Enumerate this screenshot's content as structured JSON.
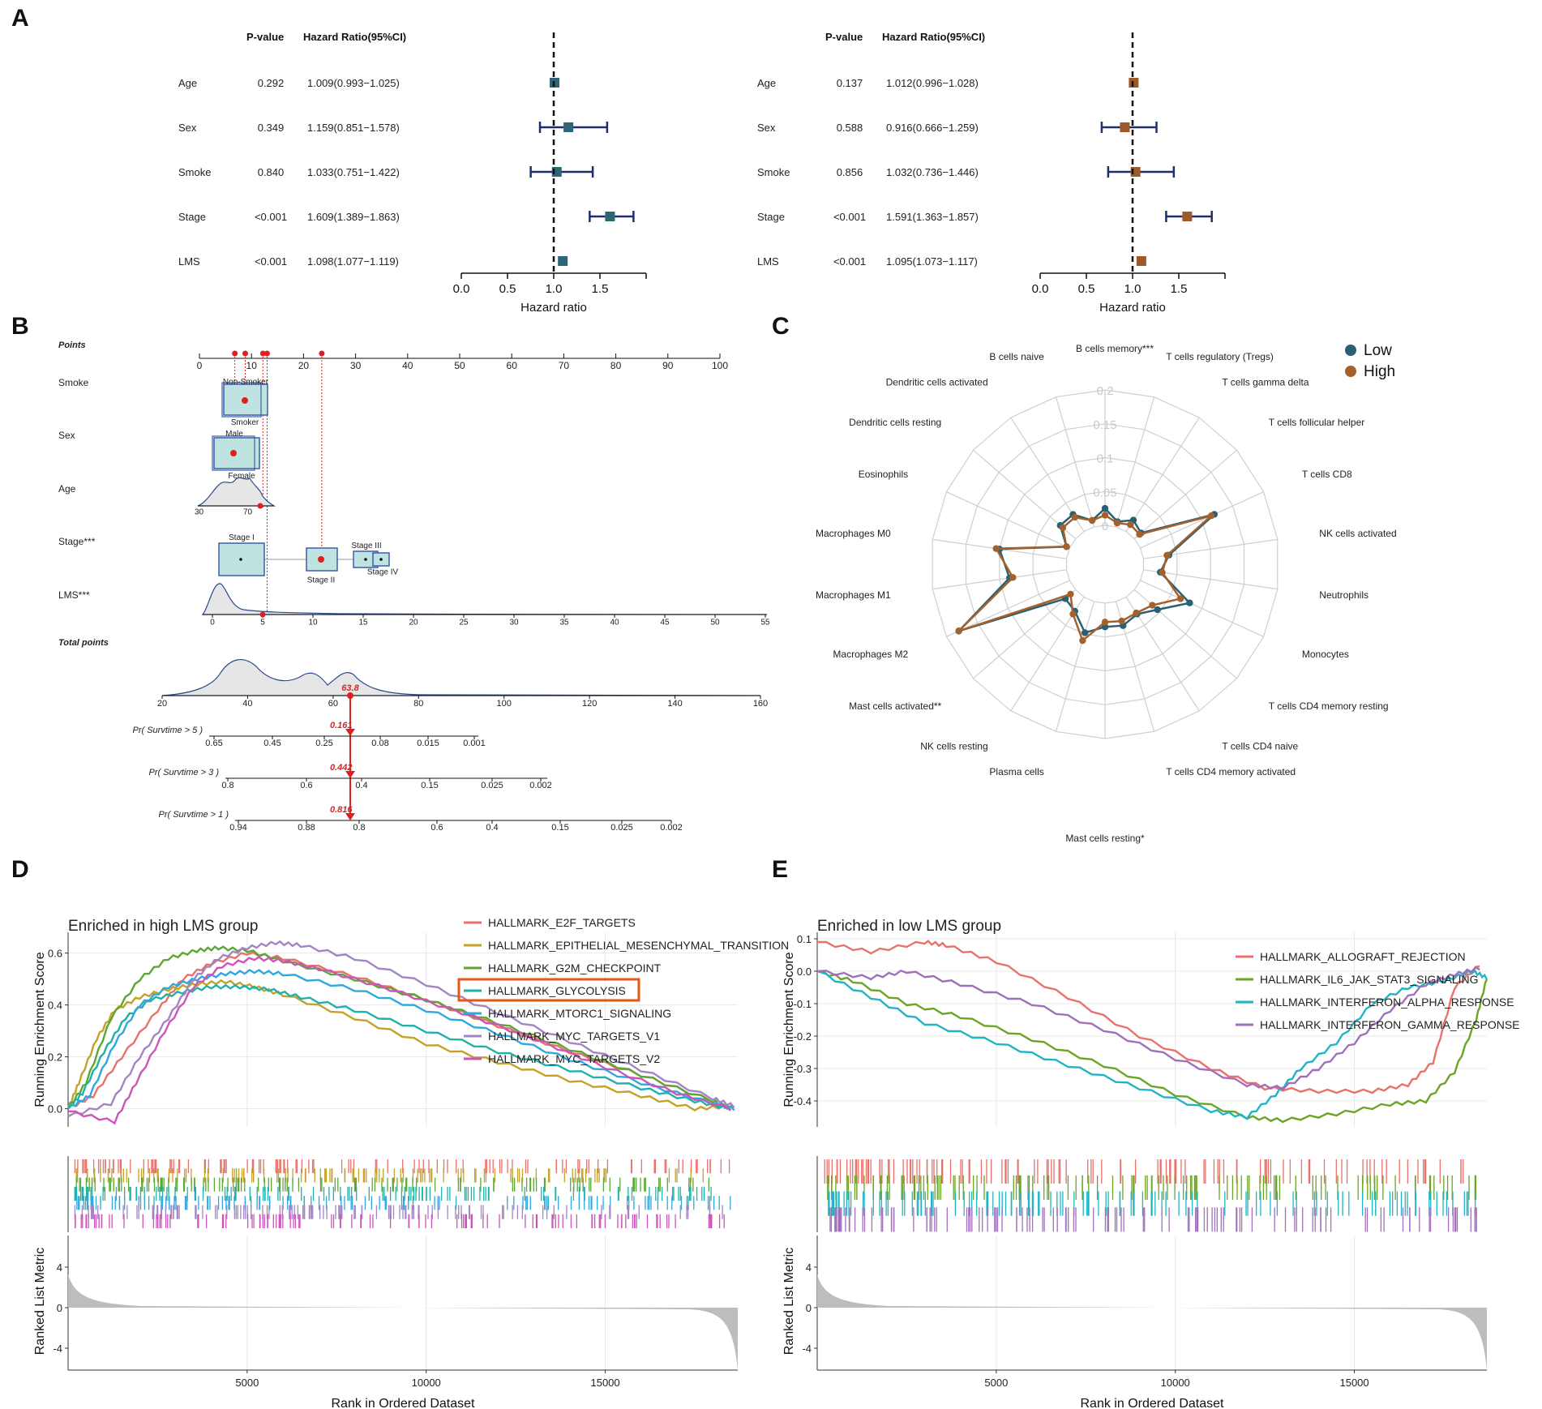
{
  "panel_labels": {
    "a": "A",
    "b": "B",
    "c": "C",
    "d": "D",
    "e": "E"
  },
  "chart_data": [
    {
      "id": "forest_left",
      "type": "forest",
      "headers": {
        "p": "P-value",
        "hr": "Hazard Ratio(95%CI)"
      },
      "rows": [
        {
          "name": "Age",
          "p": "0.292",
          "hr_text": "1.009(0.993−1.025)",
          "hr": 1.009,
          "lo": 0.993,
          "hi": 1.025
        },
        {
          "name": "Sex",
          "p": "0.349",
          "hr_text": "1.159(0.851−1.578)",
          "hr": 1.159,
          "lo": 0.851,
          "hi": 1.578
        },
        {
          "name": "Smoke",
          "p": "0.840",
          "hr_text": "1.033(0.751−1.422)",
          "hr": 1.033,
          "lo": 0.751,
          "hi": 1.422
        },
        {
          "name": "Stage",
          "p": "<0.001",
          "hr_text": "1.609(1.389−1.863)",
          "hr": 1.609,
          "lo": 1.389,
          "hi": 1.863
        },
        {
          "name": "LMS",
          "p": "<0.001",
          "hr_text": "1.098(1.077−1.119)",
          "hr": 1.098,
          "lo": 1.077,
          "hi": 1.119
        }
      ],
      "xticks": [
        "0.0",
        "0.5",
        "1.0",
        "1.5"
      ],
      "xlim": [
        0,
        2
      ],
      "xlabel": "Hazard ratio",
      "color": "#2e6577"
    },
    {
      "id": "forest_right",
      "type": "forest",
      "headers": {
        "p": "P-value",
        "hr": "Hazard Ratio(95%CI)"
      },
      "rows": [
        {
          "name": "Age",
          "p": "0.137",
          "hr_text": "1.012(0.996−1.028)",
          "hr": 1.012,
          "lo": 0.996,
          "hi": 1.028
        },
        {
          "name": "Sex",
          "p": "0.588",
          "hr_text": "0.916(0.666−1.259)",
          "hr": 0.916,
          "lo": 0.666,
          "hi": 1.259
        },
        {
          "name": "Smoke",
          "p": "0.856",
          "hr_text": "1.032(0.736−1.446)",
          "hr": 1.032,
          "lo": 0.736,
          "hi": 1.446
        },
        {
          "name": "Stage",
          "p": "<0.001",
          "hr_text": "1.591(1.363−1.857)",
          "hr": 1.591,
          "lo": 1.363,
          "hi": 1.857
        },
        {
          "name": "LMS",
          "p": "<0.001",
          "hr_text": "1.095(1.073−1.117)",
          "hr": 1.095,
          "lo": 1.073,
          "hi": 1.117
        }
      ],
      "xticks": [
        "0.0",
        "0.5",
        "1.0",
        "1.5"
      ],
      "xlim": [
        0,
        2
      ],
      "xlabel": "Hazard ratio",
      "color": "#9c5a2a"
    },
    {
      "id": "nomogram",
      "type": "nomogram",
      "points_label": "Points",
      "points_ticks": [
        "0",
        "10",
        "20",
        "30",
        "40",
        "50",
        "60",
        "70",
        "80",
        "90",
        "100"
      ],
      "smoke": {
        "label": "Smoke",
        "cats": [
          "Non-Smoker",
          "Smoker"
        ]
      },
      "sex": {
        "label": "Sex",
        "cats": [
          "Male",
          "Female"
        ]
      },
      "age": {
        "label": "Age",
        "ticks": [
          "30",
          "70"
        ]
      },
      "stage": {
        "label": "Stage***",
        "cats": [
          "Stage I",
          "Stage II",
          "Stage III",
          "Stage IV"
        ]
      },
      "lms": {
        "label": "LMS***",
        "ticks": [
          "0",
          "5",
          "10",
          "15",
          "20",
          "25",
          "30",
          "35",
          "40",
          "45",
          "50",
          "55"
        ]
      },
      "total_label": "Total points",
      "total_ticks": [
        "20",
        "40",
        "60",
        "80",
        "100",
        "120",
        "140",
        "160"
      ],
      "total_value": "63.8",
      "surv5": {
        "label": "Pr( Survtime > 5 )",
        "ticks": [
          "0.65",
          "0.45",
          "0.25",
          "0.08",
          "0.015",
          "0.001"
        ],
        "value": "0.161"
      },
      "surv3": {
        "label": "Pr( Survtime > 3 )",
        "ticks": [
          "0.8",
          "0.6",
          "0.4",
          "0.15",
          "0.025",
          "0.002"
        ],
        "value": "0.442"
      },
      "surv1": {
        "label": "Pr( Survtime > 1 )",
        "ticks": [
          "0.94",
          "0.88",
          "0.8",
          "0.6",
          "0.4",
          "0.15",
          "0.025",
          "0.002"
        ],
        "value": "0.816"
      }
    },
    {
      "id": "radar",
      "type": "radar",
      "categories": [
        "B cells memory***",
        "T cells regulatory (Tregs)",
        "T cells gamma delta",
        "T cells follicular helper",
        "T cells CD8",
        "NK cells activated",
        "Neutrophils",
        "Monocytes",
        "T cells CD4 memory resting",
        "T cells CD4 naive",
        "T cells CD4 memory activated",
        "Mast cells resting*",
        "Plasma cells",
        "NK cells resting",
        "Mast cells activated**",
        "Macrophages M2",
        "Macrophages M1",
        "Macrophages M0",
        "Eosinophils",
        "Dendritic cells resting",
        "Dendritic cells activated",
        "B cells naive"
      ],
      "rticks": [
        "0",
        "0.05",
        "0.1",
        "0.15",
        "0.2"
      ],
      "rlim": [
        0,
        0.2
      ],
      "series": [
        {
          "name": "Low",
          "color": "#2a5f74",
          "values": [
            0.025,
            0.008,
            0.02,
            0.013,
            0.12,
            0.038,
            0.025,
            0.08,
            0.045,
            0.03,
            0.037,
            0.035,
            0.048,
            0.025,
            0.02,
            0.18,
            0.085,
            0.1,
            0.005,
            0.03,
            0.03,
            0.01
          ]
        },
        {
          "name": "High",
          "color": "#a3612d",
          "values": [
            0.015,
            0.006,
            0.012,
            0.01,
            0.115,
            0.035,
            0.028,
            0.065,
            0.035,
            0.028,
            0.03,
            0.028,
            0.06,
            0.03,
            0.01,
            0.18,
            0.08,
            0.105,
            0.005,
            0.025,
            0.025,
            0.01
          ]
        }
      ]
    },
    {
      "id": "gsea_high",
      "type": "line",
      "title": "Enriched in high LMS group",
      "ylabel": "Running Enrichment Score",
      "ylabel2": "Ranked List Metric",
      "xlabel": "Rank in Ordered Dataset",
      "yticks": [
        "0.0",
        "0.2",
        "0.4",
        "0.6"
      ],
      "ylim": [
        -0.07,
        0.68
      ],
      "xticks": [
        "5000",
        "10000",
        "15000"
      ],
      "xlim": [
        0,
        18700
      ],
      "metric_ticks": [
        "4",
        "0",
        "-4"
      ],
      "highlighted": "HALLMARK_GLYCOLYSIS",
      "series": [
        {
          "name": "HALLMARK_E2F_TARGETS",
          "color": "#e8716b",
          "x": [
            0,
            700,
            1500,
            2500,
            3200,
            4000,
            5000,
            6000,
            8000,
            10000,
            12000,
            14000,
            16000,
            18000,
            18500
          ],
          "y": [
            0,
            0.05,
            0.2,
            0.38,
            0.5,
            0.56,
            0.6,
            0.58,
            0.51,
            0.42,
            0.32,
            0.22,
            0.13,
            0.03,
            0.0
          ]
        },
        {
          "name": "HALLMARK_EPITHELIAL_MESENCHYMAL_TRANSITION",
          "color": "#c4a227",
          "x": [
            0,
            300,
            800,
            1300,
            2000,
            2800,
            3600,
            4400,
            5200,
            6000,
            8000,
            10000,
            12000,
            14000,
            16000,
            17500,
            18500
          ],
          "y": [
            0,
            0.1,
            0.27,
            0.38,
            0.43,
            0.46,
            0.48,
            0.49,
            0.47,
            0.44,
            0.35,
            0.25,
            0.18,
            0.11,
            0.05,
            0.0,
            0.01
          ]
        },
        {
          "name": "HALLMARK_G2M_CHECKPOINT",
          "color": "#5aa832",
          "x": [
            0,
            500,
            1200,
            2000,
            2800,
            3600,
            4200,
            5000,
            6000,
            8000,
            10000,
            12000,
            14000,
            16000,
            18000,
            18500
          ],
          "y": [
            0,
            0.1,
            0.35,
            0.5,
            0.58,
            0.61,
            0.62,
            0.61,
            0.57,
            0.5,
            0.42,
            0.33,
            0.23,
            0.13,
            0.03,
            0.0
          ]
        },
        {
          "name": "HALLMARK_GLYCOLYSIS",
          "color": "#20b2aa",
          "x": [
            0,
            400,
            1000,
            1600,
            2300,
            3200,
            4000,
            4800,
            5600,
            6500,
            8000,
            10000,
            12000,
            14000,
            16000,
            17500,
            18500
          ],
          "y": [
            0,
            0.06,
            0.22,
            0.35,
            0.42,
            0.45,
            0.47,
            0.47,
            0.46,
            0.43,
            0.38,
            0.3,
            0.22,
            0.15,
            0.08,
            0.03,
            0.0
          ]
        },
        {
          "name": "HALLMARK_MTORC1_SIGNALING",
          "color": "#2ea8de",
          "x": [
            0,
            600,
            1300,
            2000,
            2800,
            3600,
            4400,
            5200,
            6000,
            8000,
            10000,
            12000,
            14000,
            16000,
            18000,
            18600
          ],
          "y": [
            0,
            0.05,
            0.25,
            0.4,
            0.47,
            0.5,
            0.52,
            0.53,
            0.52,
            0.46,
            0.38,
            0.29,
            0.19,
            0.1,
            0.02,
            0.0
          ]
        },
        {
          "name": "HALLMARK_MYC_TARGETS_V1",
          "color": "#a285c4",
          "x": [
            0,
            1200,
            2000,
            2800,
            3500,
            4200,
            5000,
            5800,
            6500,
            8000,
            10000,
            12000,
            14000,
            16000,
            18000,
            18600
          ],
          "y": [
            -0.03,
            0.02,
            0.2,
            0.35,
            0.5,
            0.58,
            0.62,
            0.64,
            0.63,
            0.58,
            0.48,
            0.37,
            0.26,
            0.15,
            0.04,
            0.01
          ]
        },
        {
          "name": "HALLMARK_MYC_TARGETS_V2",
          "color": "#cc55b9",
          "x": [
            0,
            1300,
            1900,
            2700,
            3500,
            4300,
            5200,
            6000,
            7000,
            9000,
            11000,
            13000,
            15000,
            17000,
            18500
          ],
          "y": [
            -0.01,
            -0.05,
            0.1,
            0.3,
            0.47,
            0.55,
            0.58,
            0.57,
            0.54,
            0.46,
            0.37,
            0.27,
            0.16,
            0.06,
            0.0
          ]
        }
      ]
    },
    {
      "id": "gsea_low",
      "type": "line",
      "title": "Enriched in low LMS group",
      "ylabel": "Running Enrichment Score",
      "ylabel2": "Ranked List Metric",
      "xlabel": "Rank in Ordered Dataset",
      "yticks": [
        "0.1",
        "0.0",
        "-0.1",
        "-0.2",
        "-0.3",
        "-0.4"
      ],
      "ylim": [
        -0.48,
        0.12
      ],
      "xticks": [
        "5000",
        "10000",
        "15000"
      ],
      "xlim": [
        0,
        18700
      ],
      "metric_ticks": [
        "4",
        "0",
        "-4"
      ],
      "series": [
        {
          "name": "HALLMARK_ALLOGRAFT_REJECTION",
          "color": "#e8716b",
          "x": [
            0,
            1500,
            3000,
            3600,
            5000,
            7000,
            9000,
            11000,
            12500,
            14000,
            15500,
            16500,
            17200,
            17800,
            18500
          ],
          "y": [
            0.09,
            0.06,
            0.09,
            0.08,
            0.03,
            -0.08,
            -0.2,
            -0.3,
            -0.36,
            -0.37,
            -0.37,
            -0.35,
            -0.28,
            -0.05,
            0.02
          ]
        },
        {
          "name": "HALLMARK_IL6_JAK_STAT3_SIGNALING",
          "color": "#6aa524",
          "x": [
            0,
            1000,
            2500,
            4000,
            6000,
            8000,
            10000,
            12000,
            13000,
            14500,
            16000,
            17000,
            17800,
            18400,
            18700
          ],
          "y": [
            0,
            -0.03,
            -0.1,
            -0.14,
            -0.21,
            -0.29,
            -0.38,
            -0.45,
            -0.46,
            -0.44,
            -0.41,
            -0.4,
            -0.31,
            -0.15,
            -0.02
          ]
        },
        {
          "name": "HALLMARK_INTERFERON_ALPHA_RESPONSE",
          "color": "#20b5c4",
          "x": [
            0,
            1500,
            3000,
            5000,
            7000,
            9000,
            11000,
            12000,
            12800,
            13500,
            14500,
            15500,
            16500,
            17500,
            18300,
            18700
          ],
          "y": [
            0,
            -0.08,
            -0.16,
            -0.22,
            -0.29,
            -0.36,
            -0.43,
            -0.45,
            -0.38,
            -0.3,
            -0.22,
            -0.1,
            -0.05,
            -0.03,
            0.0,
            -0.02
          ]
        },
        {
          "name": "HALLMARK_INTERFERON_GAMMA_RESPONSE",
          "color": "#a070bb",
          "x": [
            0,
            1500,
            2500,
            4000,
            6000,
            8000,
            10000,
            12000,
            13000,
            14000,
            15000,
            16000,
            17000,
            17800,
            18500
          ],
          "y": [
            0,
            -0.02,
            0.0,
            -0.04,
            -0.1,
            -0.18,
            -0.27,
            -0.35,
            -0.36,
            -0.3,
            -0.22,
            -0.12,
            -0.04,
            -0.01,
            0.01
          ]
        }
      ]
    }
  ]
}
